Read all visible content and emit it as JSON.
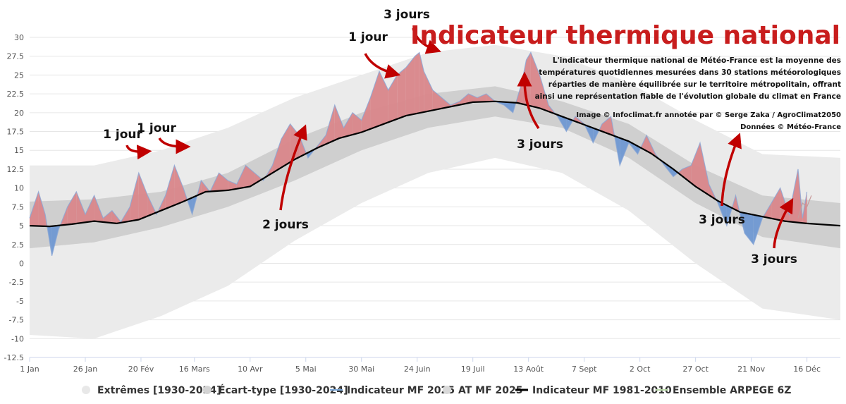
{
  "chart_data": {
    "type": "area",
    "title": "Indicateur thermique national",
    "description": [
      "L'indicateur thermique national de Météo-France est la moyenne des",
      "températures quotidiennes mesurées dans 30 stations météorologiques",
      "réparties de manière équilibrée sur le territoire métropolitain, offrant",
      "ainsi une représentation fiable de l'évolution globale du climat en France"
    ],
    "credits": [
      "Image © Infoclimat.fr annotée par © Serge Zaka / AgroClimat2050",
      "Données © Météo-France"
    ],
    "ylim": [
      -12.5,
      30
    ],
    "yticks": [
      30,
      27.5,
      25,
      22.5,
      20,
      17.5,
      15,
      12.5,
      10,
      7.5,
      5,
      2.5,
      0,
      -2.5,
      -5,
      -7.5,
      -10,
      -12.5
    ],
    "ytick_labels": [
      "30",
      "27.5",
      "25",
      "22.5",
      "20",
      "17.5",
      "15",
      "12.5",
      "10",
      "7.5",
      "5",
      "2.5",
      "0",
      "-2.5",
      "-5",
      "-7.5",
      "-10",
      "-12.5"
    ],
    "xlim": [
      1,
      365
    ],
    "xticks": [
      {
        "day": 1,
        "label": "1 Jan"
      },
      {
        "day": 26,
        "label": "26 Jan"
      },
      {
        "day": 51,
        "label": "20 Fév"
      },
      {
        "day": 75,
        "label": "16 Mars"
      },
      {
        "day": 100,
        "label": "10 Avr"
      },
      {
        "day": 125,
        "label": "5 Mai"
      },
      {
        "day": 150,
        "label": "30 Mai"
      },
      {
        "day": 175,
        "label": "24 Juin"
      },
      {
        "day": 200,
        "label": "19 Juil"
      },
      {
        "day": 225,
        "label": "13 Août"
      },
      {
        "day": 250,
        "label": "7 Sept"
      },
      {
        "day": 275,
        "label": "2 Oct"
      },
      {
        "day": 300,
        "label": "27 Oct"
      },
      {
        "day": 325,
        "label": "21 Nov"
      },
      {
        "day": 350,
        "label": "16 Déc"
      }
    ],
    "normal_1981_2010": {
      "x": [
        1,
        10,
        20,
        30,
        40,
        50,
        60,
        70,
        80,
        90,
        100,
        110,
        120,
        130,
        140,
        150,
        160,
        170,
        180,
        190,
        200,
        210,
        220,
        230,
        240,
        250,
        260,
        270,
        280,
        290,
        300,
        310,
        320,
        330,
        340,
        350,
        365
      ],
      "y": [
        5.0,
        4.9,
        5.2,
        5.6,
        5.3,
        5.8,
        7.0,
        8.2,
        9.5,
        9.7,
        10.2,
        12.0,
        13.8,
        15.3,
        16.6,
        17.4,
        18.5,
        19.6,
        20.2,
        20.8,
        21.4,
        21.5,
        21.3,
        20.6,
        19.5,
        18.4,
        17.3,
        16.2,
        14.6,
        12.5,
        10.2,
        8.3,
        6.8,
        6.2,
        5.6,
        5.3,
        5.0
      ]
    },
    "std_band": {
      "x": [
        1,
        30,
        60,
        90,
        120,
        150,
        180,
        210,
        240,
        270,
        300,
        330,
        365
      ],
      "low": [
        2.0,
        2.8,
        4.8,
        7.5,
        11.0,
        15.0,
        18.0,
        19.5,
        18.0,
        14.0,
        8.0,
        3.5,
        2.0
      ],
      "high": [
        8.2,
        8.5,
        9.5,
        12.0,
        16.5,
        20.0,
        22.5,
        23.5,
        21.5,
        18.5,
        13.0,
        9.0,
        8.0
      ]
    },
    "extremes_band": {
      "x": [
        1,
        30,
        60,
        90,
        120,
        150,
        180,
        210,
        240,
        270,
        300,
        330,
        365
      ],
      "low": [
        -9.5,
        -10.0,
        -7.0,
        -3.0,
        3.0,
        8.0,
        12.0,
        14.0,
        12.0,
        7.0,
        0.0,
        -6.0,
        -7.5
      ],
      "high": [
        13.0,
        13.0,
        15.0,
        18.0,
        22.0,
        25.0,
        28.0,
        29.0,
        27.5,
        24.0,
        19.0,
        14.5,
        14.0
      ]
    },
    "indicateur_2025": {
      "name": "Indicateur MF 2025",
      "x": [
        1,
        5,
        8,
        11,
        14,
        18,
        22,
        26,
        30,
        34,
        38,
        42,
        46,
        50,
        54,
        58,
        62,
        66,
        70,
        74,
        78,
        82,
        86,
        90,
        94,
        98,
        102,
        106,
        110,
        114,
        118,
        122,
        126,
        130,
        134,
        138,
        142,
        146,
        150,
        154,
        158,
        162,
        166,
        170,
        174,
        176,
        178,
        182,
        186,
        190,
        194,
        198,
        202,
        206,
        210,
        214,
        218,
        222,
        224,
        226,
        230,
        234,
        238,
        242,
        246,
        250,
        254,
        258,
        262,
        266,
        270,
        274,
        278,
        282,
        286,
        290,
        294,
        298,
        302,
        306,
        310,
        314,
        318,
        322,
        326,
        330,
        334,
        338,
        342,
        346,
        348,
        350
      ],
      "y": [
        6.0,
        9.5,
        6.5,
        1.0,
        4.5,
        7.5,
        9.5,
        6.5,
        9.0,
        6.0,
        7.0,
        5.5,
        7.5,
        12.0,
        9.0,
        6.5,
        9.0,
        13.0,
        10.0,
        6.5,
        11.0,
        9.5,
        12.0,
        11.0,
        10.5,
        13.0,
        12.0,
        11.0,
        13.0,
        16.5,
        18.5,
        17.0,
        14.0,
        15.5,
        17.0,
        21.0,
        18.0,
        20.0,
        19.0,
        22.0,
        25.5,
        23.0,
        25.0,
        26.0,
        27.5,
        28.0,
        25.5,
        23.0,
        22.0,
        21.0,
        21.5,
        22.5,
        22.0,
        22.5,
        21.5,
        21.0,
        20.0,
        24.0,
        27.0,
        28.0,
        25.0,
        21.0,
        19.5,
        17.5,
        19.5,
        18.5,
        16.0,
        18.5,
        19.5,
        13.0,
        16.0,
        14.5,
        17.0,
        14.5,
        13.0,
        11.5,
        12.5,
        13.0,
        16.0,
        10.5,
        8.0,
        5.0,
        9.0,
        4.0,
        2.5,
        6.0,
        8.0,
        10.0,
        6.5,
        12.5,
        6.0,
        9.5
      ]
    },
    "ensemble": {
      "name": "Ensemble ARPEGE 6Z",
      "x": [
        346,
        348,
        350,
        352
      ],
      "y": [
        6.0,
        8.0,
        7.5,
        9.0
      ]
    },
    "legend": [
      {
        "label": "Extrêmes [1930-2024]",
        "color": "#e8e8e8"
      },
      {
        "label": "Écart-type [1930-2024]",
        "color": "#d4d4d4"
      },
      {
        "label": "Indicateur MF 2025",
        "color": "#7aa7d8"
      },
      {
        "label": "AT MF 2025",
        "color": "#d9d9d9"
      },
      {
        "label": "Indicateur MF 1981-2010",
        "color": "#000000"
      },
      {
        "label": "Ensemble ARPEGE 6Z",
        "color": "#b8d8a8"
      }
    ],
    "annotations": [
      {
        "text": "1 jour",
        "day": 45,
        "value": 16.5
      },
      {
        "text": "1 jour",
        "day": 58,
        "value": 17.0
      },
      {
        "text": "2 jours",
        "day": 117,
        "value": 4.5
      },
      {
        "text": "1 jour",
        "day": 150,
        "value": 29.0
      },
      {
        "text": "3 jours",
        "day": 170,
        "value": 33.0
      },
      {
        "text": "3 jours",
        "day": 227,
        "value": 15.5
      },
      {
        "text": "3 jours",
        "day": 314,
        "value": 5.5
      },
      {
        "text": "3 jours",
        "day": 342,
        "value": 0.5
      }
    ],
    "colors": {
      "above": "#d9868a",
      "below": "#6f98d2",
      "above_stroke": "#b55058",
      "below_stroke": "#5a86c4",
      "normal": "#000000",
      "title": "#c81d1d",
      "arrow": "#c00000"
    }
  }
}
